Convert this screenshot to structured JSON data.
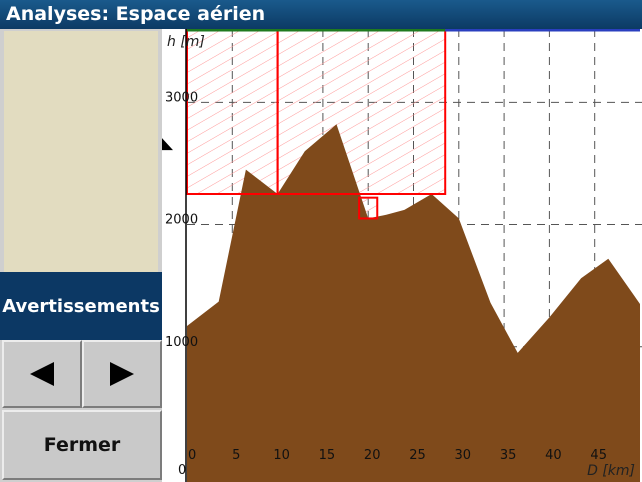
{
  "window": {
    "title": "Analyses: Espace aérien"
  },
  "left_panel": {
    "warnings_label": "Avertissements",
    "prev_icon": "arrow-left-icon",
    "next_icon": "arrow-right-icon",
    "close_label": "Fermer"
  },
  "chart_data": {
    "type": "area",
    "ylabel": "h [m]",
    "xlabel": "D [km]",
    "xlim": [
      0,
      50
    ],
    "ylim": [
      0,
      3600
    ],
    "x_ticks": [
      "0",
      "5",
      "10",
      "15",
      "20",
      "25",
      "30",
      "35",
      "40",
      "45"
    ],
    "x_tick_values": [
      0,
      5,
      10,
      15,
      20,
      25,
      30,
      35,
      40,
      45
    ],
    "y_ticks": [
      "0",
      "1000",
      "2000",
      "3000"
    ],
    "y_tick_values": [
      0,
      1000,
      2000,
      3000
    ],
    "grid": true,
    "terrain": {
      "color": "#7f4a1b",
      "x": [
        0,
        3.5,
        6.5,
        10,
        13,
        16.5,
        20,
        22,
        24,
        27,
        30,
        33.5,
        36.5,
        40,
        43.5,
        46.5,
        50
      ],
      "y": [
        1170,
        1370,
        2450,
        2250,
        2600,
        2820,
        2050,
        2080,
        2120,
        2250,
        2050,
        1360,
        950,
        1240,
        1560,
        1720,
        1350
      ]
    },
    "airspaces": [
      {
        "x": [
          0,
          10
        ],
        "y": [
          2250,
          3600
        ],
        "color": "#ff0000",
        "hatched": true
      },
      {
        "x": [
          10,
          28.5
        ],
        "y": [
          2250,
          3600
        ],
        "color": "#ff0000",
        "hatched": true
      },
      {
        "x": [
          19,
          21
        ],
        "y": [
          2050,
          2220
        ],
        "color": "#ff0000",
        "hatched": true
      }
    ],
    "route_line": {
      "segments": [
        {
          "x": [
            0,
            28.5
          ],
          "y": 3600,
          "color": "#1f7a1f"
        },
        {
          "x": [
            28.5,
            50
          ],
          "y": 3600,
          "color": "#2a3fbf"
        }
      ]
    },
    "aircraft_marker": {
      "x": 0,
      "y": 2650,
      "color": "#000000"
    }
  }
}
